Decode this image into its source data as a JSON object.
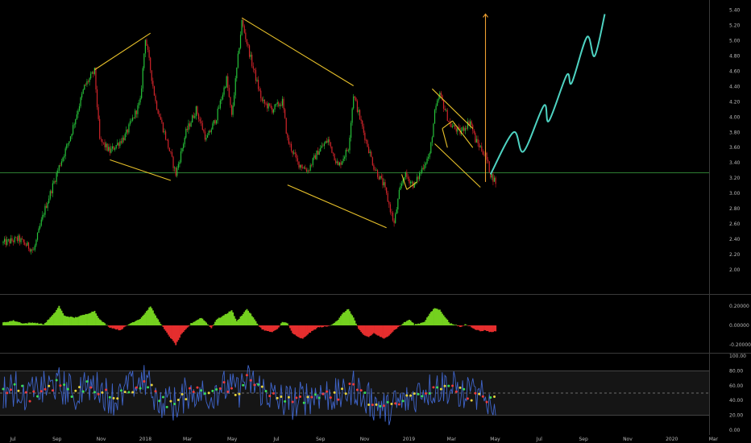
{
  "chart_data": [
    {
      "type": "candlestick",
      "panel": "price",
      "ylim": [
        1.85,
        5.45
      ],
      "y_ticks": [
        "5.40",
        "5.20",
        "5.00",
        "4.80",
        "4.60",
        "4.40",
        "4.20",
        "4.00",
        "3.80",
        "3.60",
        "3.40",
        "3.20",
        "3.00",
        "2.80",
        "2.60",
        "2.40",
        "2.20",
        "2.00"
      ],
      "y_tick_values": [
        5.4,
        5.2,
        5.0,
        4.8,
        4.6,
        4.4,
        4.2,
        4.0,
        3.8,
        3.6,
        3.4,
        3.2,
        3.0,
        2.8,
        2.6,
        2.4,
        2.2,
        2.0
      ],
      "x_ticks": [
        "Jul",
        "Sep",
        "Nov",
        "2018",
        "Mar",
        "May",
        "Jul",
        "Sep",
        "Nov",
        "2019",
        "Mar",
        "May",
        "Jul",
        "Sep",
        "Nov",
        "2020",
        "Mar"
      ],
      "x_tick_index": [
        0,
        8.7,
        17.4,
        26.1,
        34.4,
        43.2,
        51.9,
        60.6,
        69.3,
        78.0,
        86.4,
        95.0,
        103.7,
        112.4,
        121.1,
        129.8,
        138.0
      ],
      "close_anchors": [
        [
          0,
          2.35
        ],
        [
          3,
          2.4
        ],
        [
          6,
          2.25
        ],
        [
          8,
          2.75
        ],
        [
          11,
          3.35
        ],
        [
          13,
          3.7
        ],
        [
          16,
          4.4
        ],
        [
          18,
          4.6
        ],
        [
          19,
          3.7
        ],
        [
          21,
          3.55
        ],
        [
          24,
          3.75
        ],
        [
          27,
          4.2
        ],
        [
          28,
          5.05
        ],
        [
          30,
          4.2
        ],
        [
          33,
          3.5
        ],
        [
          34,
          3.25
        ],
        [
          36,
          3.8
        ],
        [
          38,
          4.1
        ],
        [
          40,
          3.7
        ],
        [
          42,
          4.0
        ],
        [
          44,
          4.5
        ],
        [
          45,
          4.0
        ],
        [
          47,
          5.25
        ],
        [
          49,
          4.7
        ],
        [
          51,
          4.2
        ],
        [
          53,
          4.1
        ],
        [
          55,
          4.2
        ],
        [
          56,
          3.7
        ],
        [
          58,
          3.4
        ],
        [
          60,
          3.3
        ],
        [
          62,
          3.55
        ],
        [
          64,
          3.7
        ],
        [
          66,
          3.35
        ],
        [
          68,
          3.6
        ],
        [
          69,
          4.3
        ],
        [
          71,
          3.8
        ],
        [
          73,
          3.35
        ],
        [
          75,
          3.1
        ],
        [
          77,
          2.6
        ],
        [
          78,
          3.0
        ],
        [
          79,
          3.25
        ],
        [
          81,
          3.1
        ],
        [
          83,
          3.4
        ],
        [
          84,
          3.5
        ],
        [
          85,
          4.05
        ],
        [
          86,
          4.3
        ],
        [
          88,
          3.9
        ],
        [
          90,
          3.8
        ],
        [
          92,
          3.95
        ],
        [
          93,
          3.7
        ],
        [
          95,
          3.5
        ],
        [
          96,
          3.25
        ],
        [
          97,
          3.15
        ]
      ],
      "support_line": 3.27,
      "trendlines": [
        [
          [
            18,
            4.62
          ],
          [
            29,
            5.1
          ]
        ],
        [
          [
            21,
            3.44
          ],
          [
            33,
            3.17
          ]
        ],
        [
          [
            47,
            5.3
          ],
          [
            69,
            4.41
          ]
        ],
        [
          [
            56,
            3.11
          ],
          [
            75.5,
            2.55
          ]
        ],
        [
          [
            84.5,
            4.37
          ],
          [
            92.5,
            3.85
          ]
        ],
        [
          [
            85,
            3.65
          ],
          [
            94,
            3.08
          ]
        ],
        [
          [
            86.5,
            3.85
          ],
          [
            88.5,
            3.95
          ]
        ],
        [
          [
            88.5,
            3.95
          ],
          [
            92.5,
            3.6
          ]
        ],
        [
          [
            86.5,
            3.85
          ],
          [
            87.5,
            3.6
          ]
        ],
        [
          [
            78.5,
            3.25
          ],
          [
            79.5,
            3.05
          ]
        ],
        [
          [
            79.5,
            3.05
          ],
          [
            81.5,
            3.15
          ]
        ]
      ],
      "arrow": {
        "x": 95,
        "from": 3.15,
        "to": 5.35
      },
      "projection": [
        [
          96,
          3.25
        ],
        [
          100.5,
          3.8
        ],
        [
          102.5,
          3.55
        ],
        [
          106.5,
          4.15
        ],
        [
          107.5,
          3.95
        ],
        [
          111,
          4.55
        ],
        [
          112,
          4.45
        ],
        [
          115,
          5.05
        ],
        [
          116.5,
          4.8
        ],
        [
          118.5,
          5.35
        ]
      ],
      "colors": {
        "up": "#26c23a",
        "down": "#d0242a",
        "trend": "#e8c12a",
        "arrow": "#f0a030",
        "support": "#2e7d32",
        "projection": "#4ed3c2"
      }
    },
    {
      "type": "area",
      "panel": "oscillator",
      "ylim": [
        -0.25,
        0.25
      ],
      "y_ticks": [
        "0.20000",
        "0.00000",
        "-0.20000"
      ],
      "y_tick_values": [
        0.2,
        0.0,
        -0.2
      ],
      "anchors": [
        [
          0,
          0.03
        ],
        [
          2,
          0.05
        ],
        [
          4,
          0.02
        ],
        [
          6,
          0.03
        ],
        [
          8,
          0.01
        ],
        [
          10,
          0.12
        ],
        [
          11,
          0.2
        ],
        [
          12,
          0.1
        ],
        [
          14,
          0.08
        ],
        [
          16,
          0.11
        ],
        [
          18,
          0.15
        ],
        [
          19,
          0.06
        ],
        [
          21,
          -0.02
        ],
        [
          23,
          -0.05
        ],
        [
          25,
          0.02
        ],
        [
          27,
          0.07
        ],
        [
          28,
          0.13
        ],
        [
          29,
          0.2
        ],
        [
          30,
          0.1
        ],
        [
          32,
          -0.06
        ],
        [
          33,
          -0.13
        ],
        [
          34,
          -0.2
        ],
        [
          35,
          -0.1
        ],
        [
          37,
          0.02
        ],
        [
          39,
          0.08
        ],
        [
          40,
          0.03
        ],
        [
          41,
          -0.03
        ],
        [
          42,
          0.06
        ],
        [
          44,
          0.12
        ],
        [
          45,
          0.16
        ],
        [
          46,
          0.04
        ],
        [
          48,
          0.17
        ],
        [
          49,
          0.1
        ],
        [
          50,
          0.02
        ],
        [
          51,
          -0.04
        ],
        [
          52,
          -0.06
        ],
        [
          53,
          -0.07
        ],
        [
          54,
          -0.04
        ],
        [
          55,
          0.04
        ],
        [
          56,
          0.02
        ],
        [
          57,
          -0.08
        ],
        [
          58,
          -0.12
        ],
        [
          59,
          -0.14
        ],
        [
          60,
          -0.09
        ],
        [
          62,
          -0.02
        ],
        [
          64,
          -0.01
        ],
        [
          65,
          0.02
        ],
        [
          66,
          0.06
        ],
        [
          67,
          0.13
        ],
        [
          68,
          0.17
        ],
        [
          69,
          0.08
        ],
        [
          70,
          -0.04
        ],
        [
          71,
          -0.1
        ],
        [
          72,
          -0.12
        ],
        [
          73,
          -0.08
        ],
        [
          74,
          -0.11
        ],
        [
          75,
          -0.14
        ],
        [
          76,
          -0.1
        ],
        [
          77,
          -0.05
        ],
        [
          78,
          -0.01
        ],
        [
          79,
          0.03
        ],
        [
          80,
          0.06
        ],
        [
          81,
          0.01
        ],
        [
          82,
          0.02
        ],
        [
          83,
          0.04
        ],
        [
          84,
          0.12
        ],
        [
          85,
          0.18
        ],
        [
          86,
          0.16
        ],
        [
          87,
          0.09
        ],
        [
          88,
          0.02
        ],
        [
          89,
          0.01
        ],
        [
          90,
          -0.02
        ],
        [
          91,
          0.01
        ],
        [
          92,
          -0.01
        ],
        [
          93,
          -0.04
        ],
        [
          94,
          -0.06
        ],
        [
          95,
          -0.05
        ],
        [
          96,
          -0.07
        ],
        [
          97,
          -0.06
        ]
      ],
      "colors": {
        "positive": "#74d11f",
        "negative": "#e52e2e"
      }
    },
    {
      "type": "line",
      "panel": "rsi",
      "ylim": [
        0,
        100
      ],
      "y_ticks": [
        "100.00",
        "80.00",
        "60.00",
        "40.00",
        "20.00",
        "0.00"
      ],
      "y_tick_values": [
        100,
        80,
        60,
        40,
        20,
        0
      ],
      "upper_band": 80,
      "lower_band": 20,
      "mid_line": 50,
      "anchors": [
        [
          0,
          52
        ],
        [
          3,
          58
        ],
        [
          5,
          45
        ],
        [
          8,
          55
        ],
        [
          11,
          62
        ],
        [
          14,
          48
        ],
        [
          16,
          60
        ],
        [
          19,
          55
        ],
        [
          22,
          42
        ],
        [
          25,
          55
        ],
        [
          28,
          65
        ],
        [
          31,
          40
        ],
        [
          34,
          35
        ],
        [
          37,
          55
        ],
        [
          40,
          48
        ],
        [
          43,
          60
        ],
        [
          46,
          50
        ],
        [
          48,
          68
        ],
        [
          51,
          55
        ],
        [
          54,
          42
        ],
        [
          57,
          38
        ],
        [
          60,
          45
        ],
        [
          63,
          50
        ],
        [
          66,
          45
        ],
        [
          69,
          60
        ],
        [
          72,
          40
        ],
        [
          75,
          30
        ],
        [
          78,
          35
        ],
        [
          81,
          48
        ],
        [
          84,
          55
        ],
        [
          87,
          60
        ],
        [
          90,
          52
        ],
        [
          93,
          45
        ],
        [
          96,
          40
        ],
        [
          97,
          42
        ]
      ],
      "colors": {
        "line": "#3f64c9",
        "band_fill": "#151515",
        "dot_green": "#3adb58",
        "dot_red": "#ee3a3a",
        "dot_yellow": "#e6d23c"
      }
    }
  ]
}
